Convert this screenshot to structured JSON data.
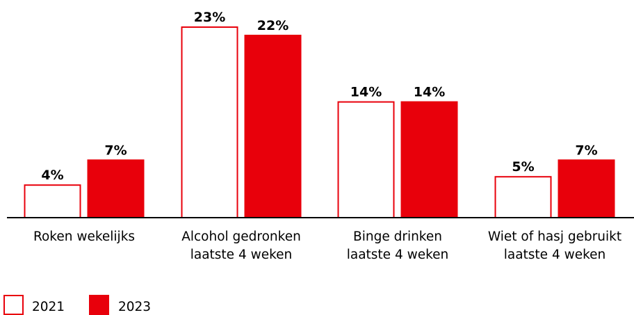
{
  "chart_data": {
    "type": "bar",
    "categories": [
      [
        "Roken wekelijks"
      ],
      [
        "Alcohol gedronken",
        "laatste 4 weken"
      ],
      [
        "Binge drinken",
        "laatste 4 weken"
      ],
      [
        "Wiet of hasj gebruikt",
        "laatste 4 weken"
      ]
    ],
    "series": [
      {
        "name": "2021",
        "values": [
          4,
          23,
          14,
          5
        ],
        "labels": [
          "4%",
          "23%",
          "14%",
          "5%"
        ],
        "style": "outline"
      },
      {
        "name": "2023",
        "values": [
          7,
          22,
          14,
          7
        ],
        "labels": [
          "7%",
          "22%",
          "14%",
          "7%"
        ],
        "style": "filled"
      }
    ],
    "unit": "%",
    "ylim": [
      0,
      23
    ],
    "grid": false,
    "legend_position": "bottom-left",
    "colors": {
      "accent": "#e8000b",
      "text": "#000000",
      "axis": "#000000"
    }
  }
}
